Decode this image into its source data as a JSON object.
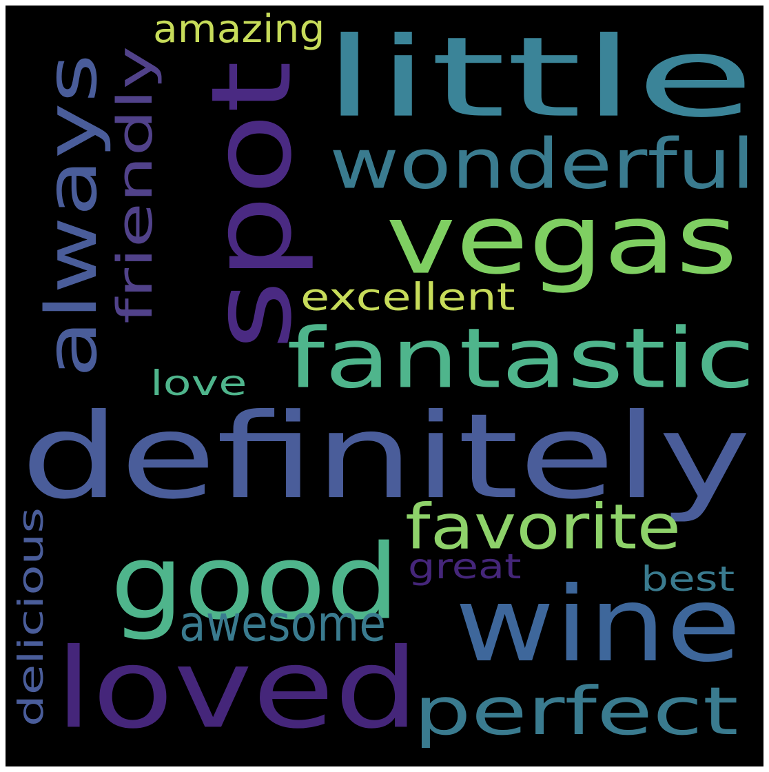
{
  "word_cloud": {
    "words": [
      {
        "text": "definitely",
        "color": "#4a5d9a"
      },
      {
        "text": "little",
        "color": "#3b8498"
      },
      {
        "text": "spot",
        "color": "#4a2a82"
      },
      {
        "text": "vegas",
        "color": "#7fcf62"
      },
      {
        "text": "good",
        "color": "#4fb58c"
      },
      {
        "text": "wine",
        "color": "#3e679b"
      },
      {
        "text": "loved",
        "color": "#45267a"
      },
      {
        "text": "always",
        "color": "#4a5d9a"
      },
      {
        "text": "fantastic",
        "color": "#4fb58c"
      },
      {
        "text": "wonderful",
        "color": "#3a7b8f"
      },
      {
        "text": "perfect",
        "color": "#3a7b8f"
      },
      {
        "text": "favorite",
        "color": "#8ed26a"
      },
      {
        "text": "awesome",
        "color": "#3a7b8f"
      },
      {
        "text": "friendly",
        "color": "#51428a"
      },
      {
        "text": "excellent",
        "color": "#c7dc5a"
      },
      {
        "text": "amazing",
        "color": "#c7dc5a"
      },
      {
        "text": "love",
        "color": "#4fb58c"
      },
      {
        "text": "delicious",
        "color": "#4a5d9a"
      },
      {
        "text": "great",
        "color": "#45267a"
      },
      {
        "text": "best",
        "color": "#3a7b8f"
      }
    ]
  }
}
